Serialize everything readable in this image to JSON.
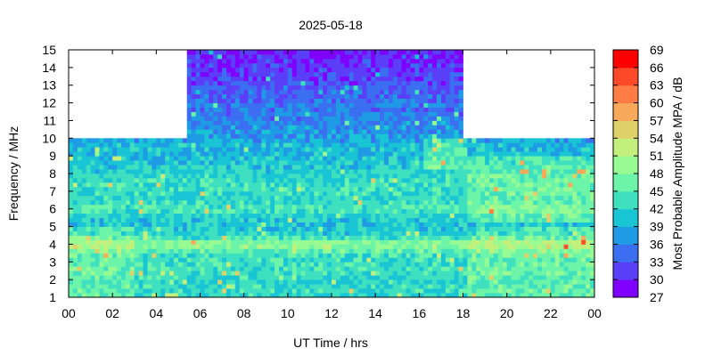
{
  "chart_data": {
    "type": "heatmap",
    "title": "2025-05-18",
    "xlabel": "UT Time / hrs",
    "ylabel": "Frequency / MHz",
    "xlim": [
      0,
      24
    ],
    "ylim": [
      1,
      15
    ],
    "x_ticks": [
      "00",
      "02",
      "04",
      "06",
      "08",
      "10",
      "12",
      "14",
      "16",
      "18",
      "20",
      "22",
      "00"
    ],
    "y_ticks": [
      "1",
      "2",
      "3",
      "4",
      "5",
      "6",
      "7",
      "8",
      "9",
      "10",
      "11",
      "12",
      "13",
      "14",
      "15"
    ],
    "colorbar": {
      "label": "Most Probable Amplitude MPA / dB",
      "range": [
        27,
        69
      ],
      "ticks": [
        "27",
        "30",
        "33",
        "36",
        "39",
        "42",
        "45",
        "48",
        "51",
        "54",
        "57",
        "60",
        "63",
        "66",
        "69"
      ],
      "colors": [
        "#7f00ff",
        "#5b3ff8",
        "#3b6ef0",
        "#1e9be4",
        "#19c4d4",
        "#3fe0c0",
        "#6cf5a8",
        "#98fa92",
        "#c3f07c",
        "#e0d06a",
        "#f9a95a",
        "#ff7d45",
        "#ff4a2a",
        "#ff0000"
      ]
    },
    "coverage": [
      {
        "x_start": 0,
        "x_end": 5.5,
        "f_max": 10
      },
      {
        "x_start": 5.5,
        "x_end": 18,
        "f_max": 15
      },
      {
        "x_start": 18,
        "x_end": 24,
        "f_max": 10
      }
    ],
    "amplitude_profile_db": [
      {
        "f": 1,
        "db": 42
      },
      {
        "f": 1.5,
        "db": 43
      },
      {
        "f": 2,
        "db": 42
      },
      {
        "f": 2.5,
        "db": 44
      },
      {
        "f": 3,
        "db": 43
      },
      {
        "f": 3.5,
        "db": 44
      },
      {
        "f": 4,
        "db": 50
      },
      {
        "f": 4.5,
        "db": 42
      },
      {
        "f": 5,
        "db": 41
      },
      {
        "f": 5.5,
        "db": 41
      },
      {
        "f": 6,
        "db": 45
      },
      {
        "f": 6.5,
        "db": 42
      },
      {
        "f": 7,
        "db": 43
      },
      {
        "f": 7.5,
        "db": 43
      },
      {
        "f": 8,
        "db": 42
      },
      {
        "f": 8.5,
        "db": 41
      },
      {
        "f": 9,
        "db": 40
      },
      {
        "f": 9.5,
        "db": 40
      },
      {
        "f": 10,
        "db": 38
      },
      {
        "f": 11,
        "db": 36
      },
      {
        "f": 12,
        "db": 35
      },
      {
        "f": 13,
        "db": 33
      },
      {
        "f": 14,
        "db": 31
      },
      {
        "f": 15,
        "db": 30
      }
    ]
  }
}
